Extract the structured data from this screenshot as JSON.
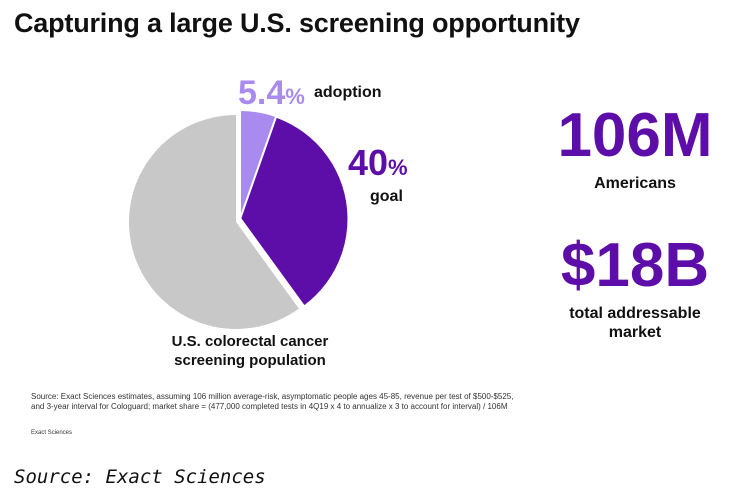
{
  "title": "Capturing a large U.S. screening opportunity",
  "chart_data": {
    "type": "pie",
    "title": "Capturing a large U.S. screening opportunity",
    "slices": [
      {
        "label": "adoption",
        "value": 5.4,
        "display": "5.4",
        "unit": "%",
        "color": "#a98bf0"
      },
      {
        "label": "goal",
        "value": 40,
        "display": "40",
        "unit": "%",
        "color": "#5e0ea8"
      },
      {
        "label": "U.S. colorectal cancer screening population",
        "value": 60,
        "color": "#c8c8c8"
      }
    ],
    "population_label": [
      "U.S. colorectal cancer",
      "screening population"
    ]
  },
  "stats": [
    {
      "value": "106M",
      "caption": [
        "Americans"
      ]
    },
    {
      "value": "$18B",
      "caption": [
        "total addressable",
        "market"
      ]
    }
  ],
  "footnote": [
    "Source: Exact Sciences estimates, assuming 106 million average-risk, asymptomatic people ages 45-85, revenue per test of $500-$525,",
    "and 3-year interval for Cologuard; market share = (477,000 completed tests in 4Q19 x 4 to annualize x 3 to account for interval) / 106M"
  ],
  "footnote_source": "Exact Sciences",
  "caption": "Source: Exact Sciences"
}
